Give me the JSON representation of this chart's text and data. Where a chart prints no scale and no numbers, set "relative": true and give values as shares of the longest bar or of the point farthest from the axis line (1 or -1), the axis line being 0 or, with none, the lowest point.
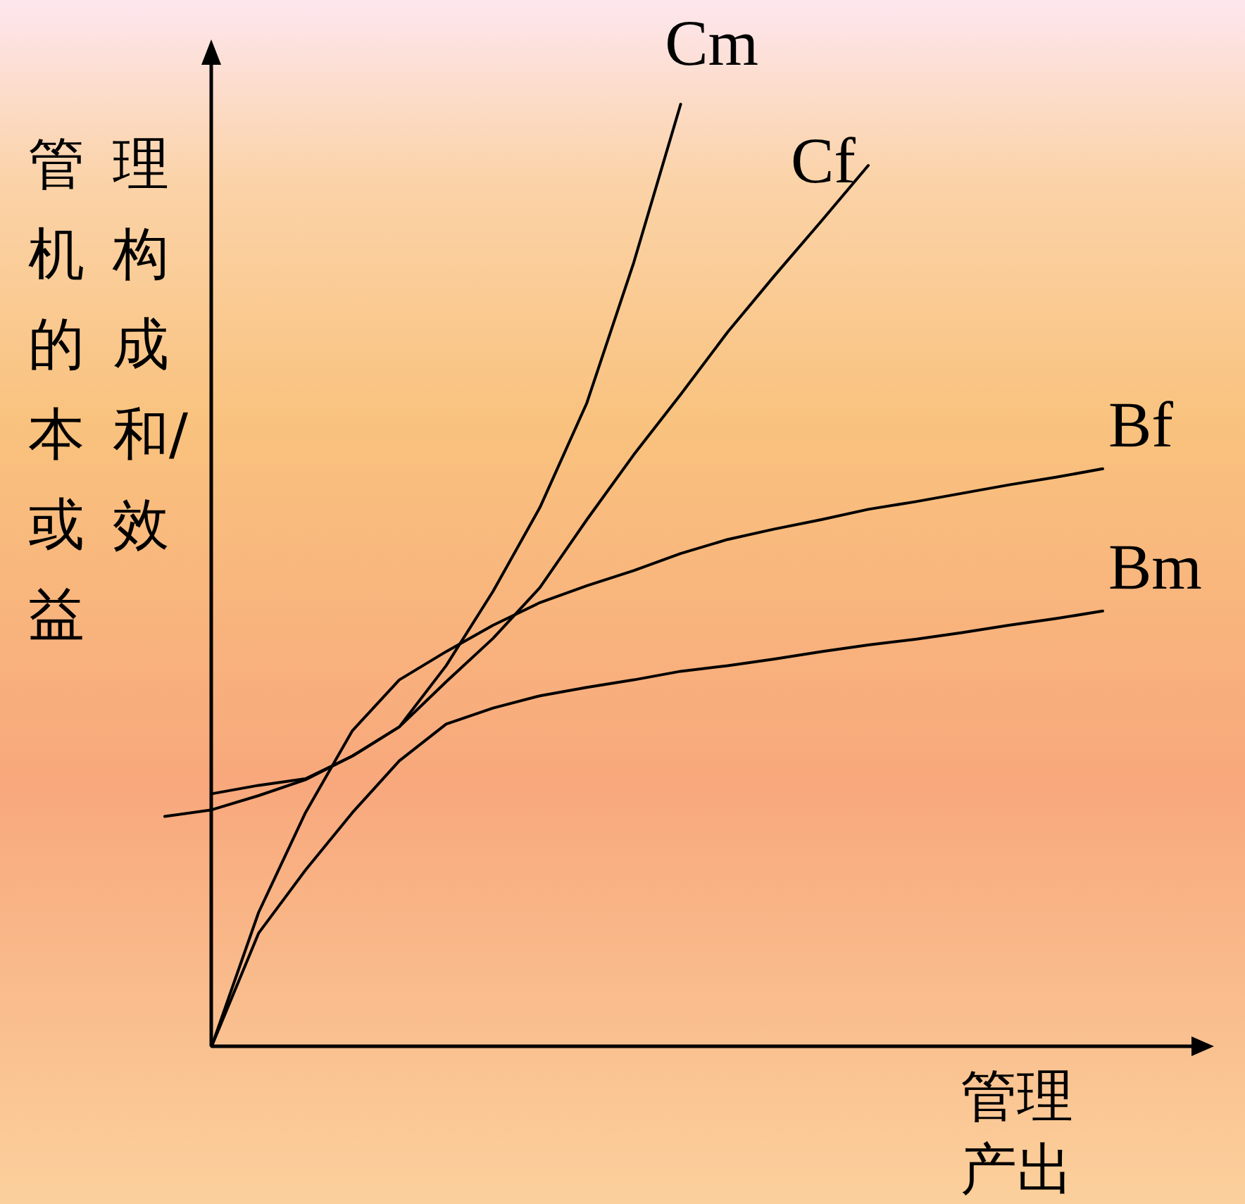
{
  "chart_data": {
    "type": "line",
    "relative": true,
    "xlabel": "管理产出",
    "ylabel": "管理机构的成本和/或效益",
    "marker": "none",
    "line_style": "solid",
    "categories": [
      null,
      null,
      null,
      null,
      null,
      null,
      null,
      null,
      null,
      null,
      null,
      null,
      null,
      null,
      null,
      null,
      null,
      null,
      null,
      null,
      null
    ],
    "series": [
      {
        "name": "Cm",
        "color": "#000000",
        "values": [
          null,
          0.268,
          0.277,
          0.284,
          0.308,
          0.339,
          0.404,
          0.483,
          0.572,
          0.683,
          0.832,
          1,
          null,
          null,
          null,
          null,
          null,
          null,
          null,
          null,
          null
        ]
      },
      {
        "name": "Cf",
        "color": "#000000",
        "values": [
          0.244,
          0.251,
          0.266,
          0.283,
          0.308,
          0.339,
          0.387,
          0.433,
          0.487,
          0.559,
          0.628,
          0.692,
          0.758,
          0.818,
          0.876,
          0.935,
          null,
          null,
          null,
          null,
          null
        ]
      },
      {
        "name": "Bf",
        "color": "#000000",
        "values": [
          null,
          0,
          0.142,
          0.248,
          0.335,
          0.389,
          0.419,
          0.447,
          0.471,
          0.489,
          0.505,
          0.523,
          0.538,
          0.549,
          0.559,
          0.57,
          0.578,
          0.587,
          0.596,
          0.604,
          0.613
        ]
      },
      {
        "name": "Bm",
        "color": "#000000",
        "values": [
          null,
          0,
          0.12,
          0.187,
          0.248,
          0.303,
          0.342,
          0.359,
          0.372,
          0.381,
          0.389,
          0.398,
          0.404,
          0.411,
          0.419,
          0.426,
          0.432,
          0.439,
          0.447,
          0.454,
          0.462
        ]
      }
    ]
  }
}
